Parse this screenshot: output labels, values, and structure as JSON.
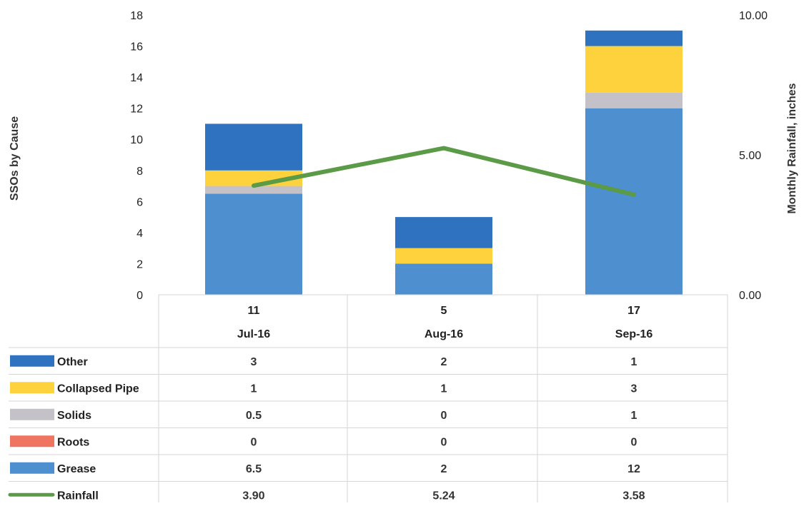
{
  "chart_data": {
    "type": "bar",
    "stacked": true,
    "categories": [
      "Jul-16",
      "Aug-16",
      "Sep-16"
    ],
    "totals": [
      11,
      5,
      17
    ],
    "series": [
      {
        "name": "Grease",
        "color": "#4e8fd0",
        "values": [
          6.5,
          2,
          12
        ],
        "labels": [
          "6.5",
          "2",
          "12"
        ]
      },
      {
        "name": "Roots",
        "color": "#f07560",
        "values": [
          0,
          0,
          0
        ],
        "labels": [
          "0",
          "0",
          "0"
        ]
      },
      {
        "name": "Solids",
        "color": "#c4c2c8",
        "values": [
          0.5,
          0,
          1
        ],
        "labels": [
          "0.5",
          "0",
          "1"
        ]
      },
      {
        "name": "Collapsed Pipe",
        "color": "#fdd23c",
        "values": [
          1,
          1,
          3
        ],
        "labels": [
          "1",
          "1",
          "3"
        ]
      },
      {
        "name": "Other",
        "color": "#2f73c0",
        "values": [
          3,
          2,
          1
        ],
        "labels": [
          "3",
          "2",
          "1"
        ]
      }
    ],
    "line_series": {
      "name": "Rainfall",
      "color": "#5b9a46",
      "axis": "right",
      "values": [
        3.9,
        5.24,
        3.58
      ],
      "labels": [
        "3.90",
        "5.24",
        "3.58"
      ]
    },
    "table_order": [
      "Other",
      "Collapsed Pipe",
      "Solids",
      "Roots",
      "Grease",
      "Rainfall"
    ],
    "ylabel": "SSOs by Cause",
    "ylabel_right": "Monthly Rainfall, inches",
    "ylim": [
      0,
      18
    ],
    "ylim_right": [
      0,
      10
    ],
    "y_ticks": [
      "0",
      "2",
      "4",
      "6",
      "8",
      "10",
      "12",
      "14",
      "16",
      "18"
    ],
    "y_ticks_right": [
      "0.00",
      "5.00",
      "10.00"
    ],
    "grid": false,
    "legend": "data-table-below"
  }
}
